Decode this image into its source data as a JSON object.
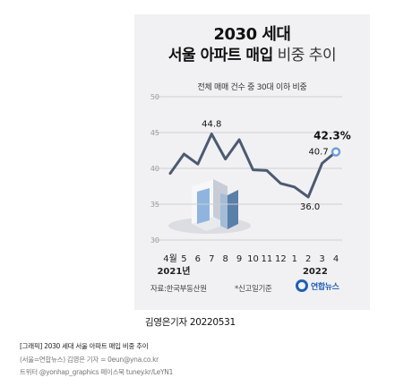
{
  "chart_data": {
    "type": "line",
    "title_line1": "2030 세대",
    "title_line2_bold": "서울 아파트 매입",
    "title_line2_light": "비중 추이",
    "subtitle": "전체 매매 건수 중 30대 이하 비중",
    "yticks": [
      30,
      35,
      40,
      45,
      50
    ],
    "ylim": [
      30,
      50
    ],
    "categories": [
      "4",
      "5",
      "6",
      "7",
      "8",
      "9",
      "10",
      "11",
      "12",
      "1",
      "2",
      "3",
      "4"
    ],
    "first_month_label": "4월",
    "year_labels": [
      "2021년",
      "2022"
    ],
    "series": [
      {
        "values": [
          39.3,
          42.0,
          40.6,
          44.8,
          41.3,
          44.0,
          39.8,
          39.7,
          37.9,
          37.4,
          36.0,
          40.7,
          42.3
        ]
      }
    ],
    "annotations": [
      "44.8",
      "40.7",
      "42.3%",
      "36.0"
    ],
    "line_color": "#4c5a72",
    "endpoint_color": "#6fa0d8"
  },
  "footer": {
    "source": "자료:한국부동산원",
    "note": "*신고일기준",
    "logo": "연합뉴스",
    "byline": "김영은기자 20220531",
    "caption": "[그래픽] 2030 세대 서울 아파트 매입 비중 추이",
    "credit": "(서울=연합뉴스) 김영은 기자 = 0eun@yna.co.kr",
    "twitter": "트위터 @yonhap_graphics 페이스북 tuney.kr/LeYN1"
  }
}
